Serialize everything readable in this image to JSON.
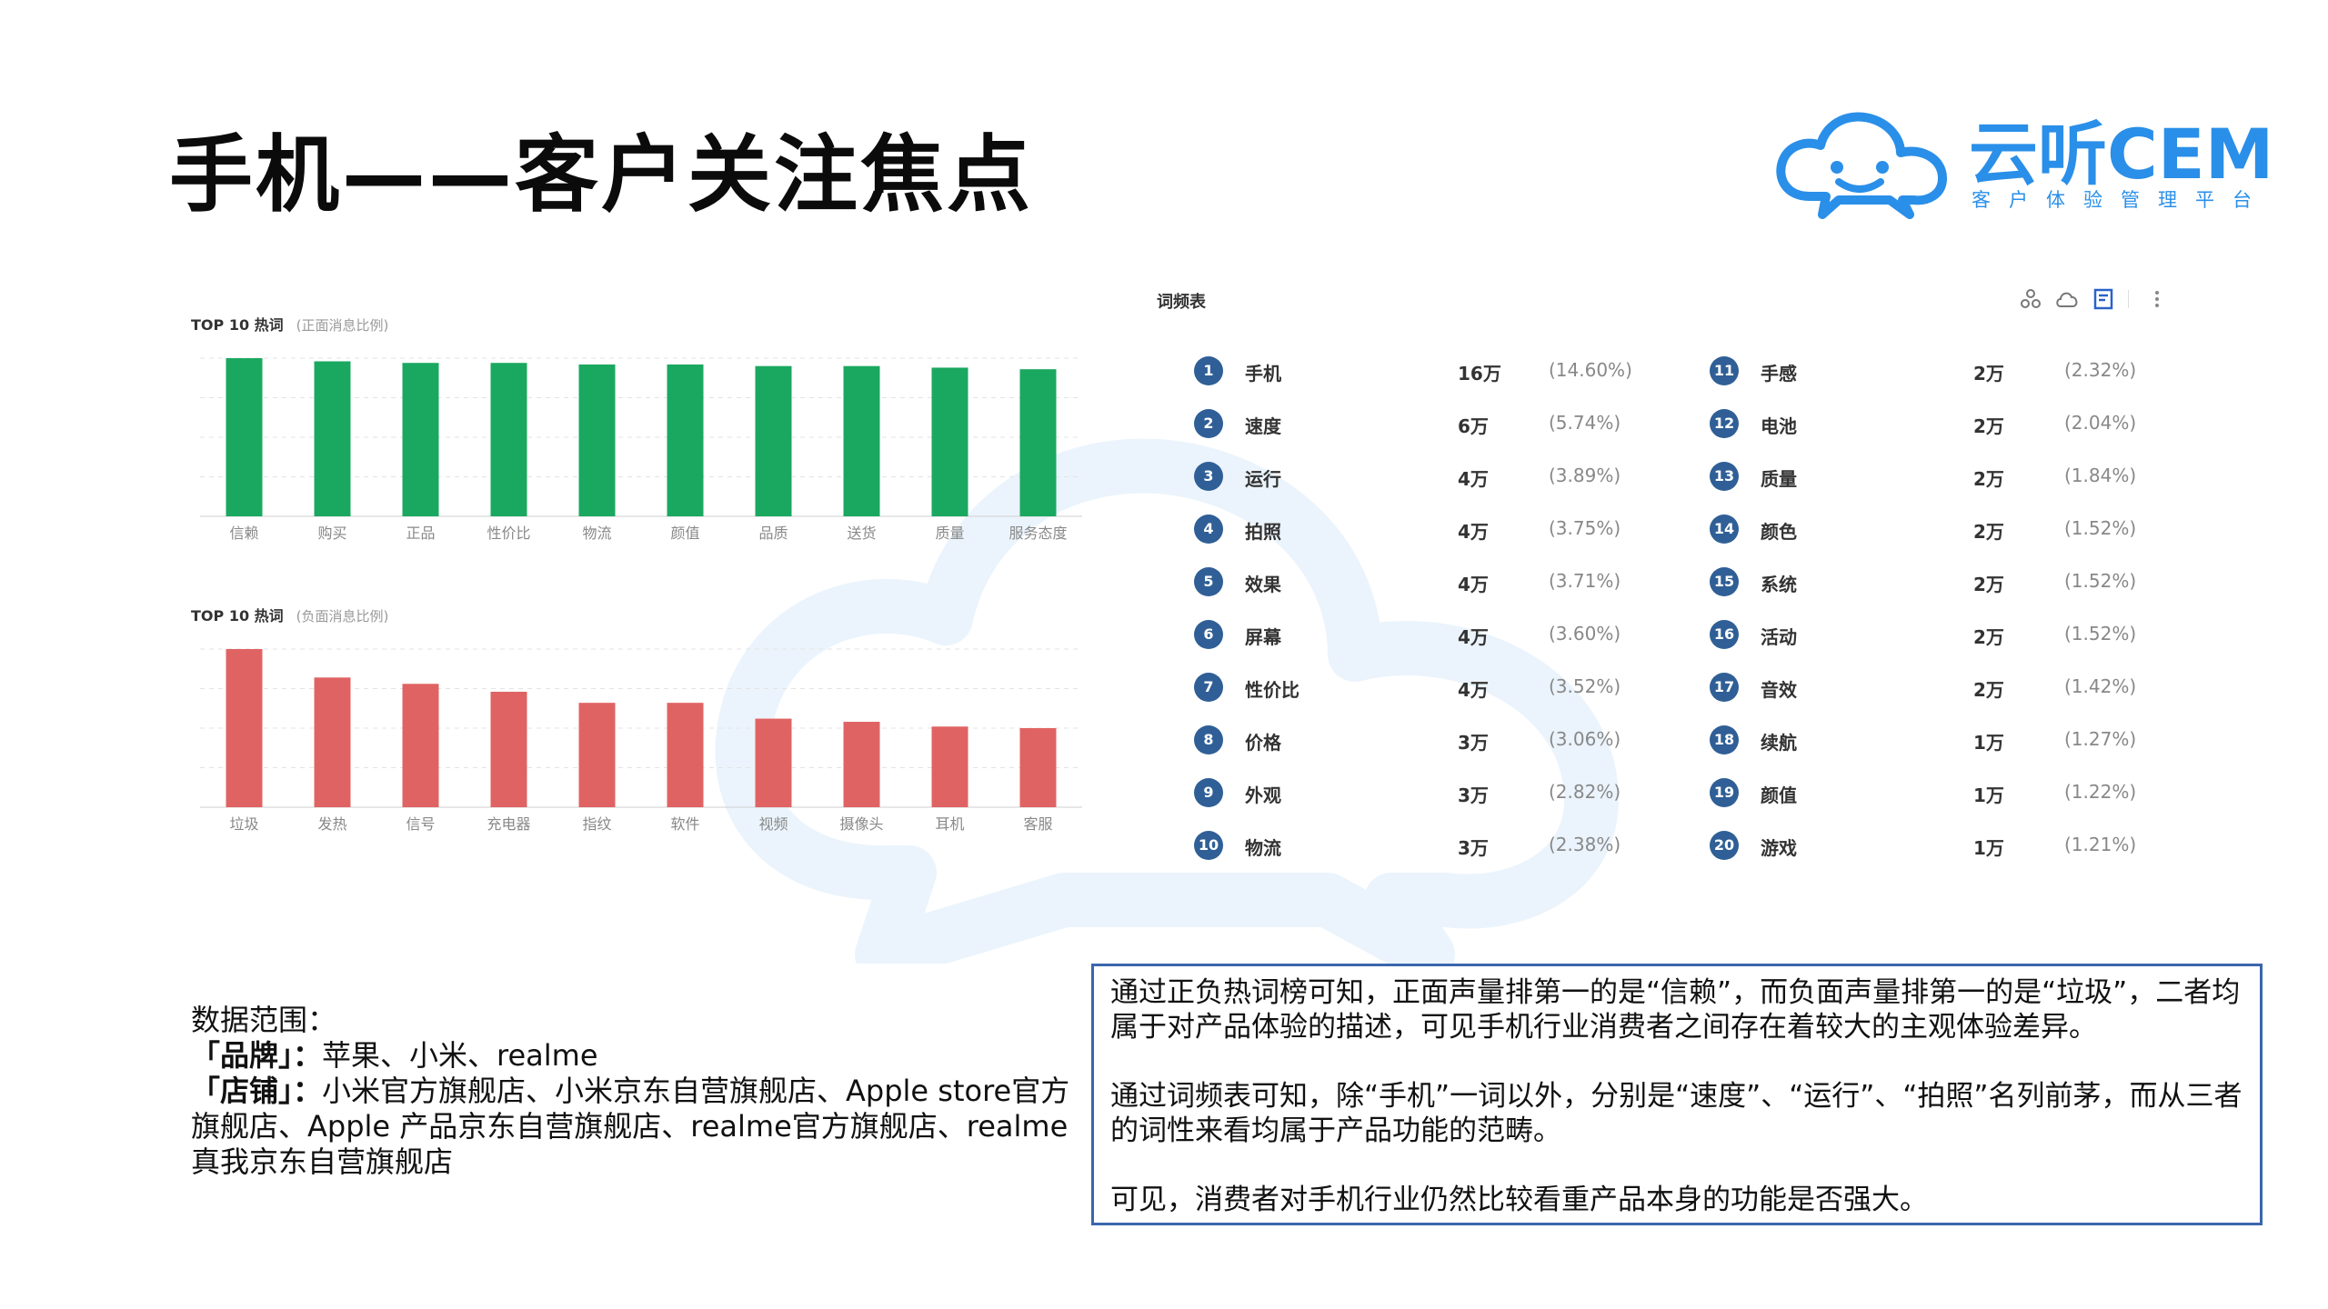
{
  "slide": {
    "title": "手机——客户关注焦点"
  },
  "logo": {
    "name": "云听CEM",
    "subtitle": "客户体验管理平台",
    "color": "#2a8fe8"
  },
  "chart_data": [
    {
      "type": "bar",
      "title": "TOP 10 热词",
      "subtitle": "(正面消息比例)",
      "color": "#1aa860",
      "categories": [
        "信赖",
        "购买",
        "正品",
        "性价比",
        "物流",
        "颜值",
        "品质",
        "送货",
        "质量",
        "服务态度"
      ],
      "values": [
        100,
        98,
        97,
        97,
        96,
        96,
        95,
        95,
        94,
        93
      ],
      "ylim": [
        0,
        100
      ],
      "grid": true
    },
    {
      "type": "bar",
      "title": "TOP 10 热词",
      "subtitle": "(负面消息比例)",
      "color": "#e06363",
      "categories": [
        "垃圾",
        "发热",
        "信号",
        "充电器",
        "指纹",
        "软件",
        "视频",
        "摄像头",
        "耳机",
        "客服"
      ],
      "values": [
        100,
        82,
        78,
        73,
        66,
        66,
        56,
        54,
        51,
        50
      ],
      "ylim": [
        0,
        100
      ],
      "grid": true
    },
    {
      "type": "table",
      "title": "词频表",
      "columns": [
        "rank",
        "word",
        "count",
        "percent"
      ],
      "rows": [
        {
          "rank": "1",
          "word": "手机",
          "count": "16万",
          "pct": "(14.60%)"
        },
        {
          "rank": "2",
          "word": "速度",
          "count": "6万",
          "pct": "(5.74%)"
        },
        {
          "rank": "3",
          "word": "运行",
          "count": "4万",
          "pct": "(3.89%)"
        },
        {
          "rank": "4",
          "word": "拍照",
          "count": "4万",
          "pct": "(3.75%)"
        },
        {
          "rank": "5",
          "word": "效果",
          "count": "4万",
          "pct": "(3.71%)"
        },
        {
          "rank": "6",
          "word": "屏幕",
          "count": "4万",
          "pct": "(3.60%)"
        },
        {
          "rank": "7",
          "word": "性价比",
          "count": "4万",
          "pct": "(3.52%)"
        },
        {
          "rank": "8",
          "word": "价格",
          "count": "3万",
          "pct": "(3.06%)"
        },
        {
          "rank": "9",
          "word": "外观",
          "count": "3万",
          "pct": "(2.82%)"
        },
        {
          "rank": "10",
          "word": "物流",
          "count": "3万",
          "pct": "(2.38%)"
        },
        {
          "rank": "11",
          "word": "手感",
          "count": "2万",
          "pct": "(2.32%)"
        },
        {
          "rank": "12",
          "word": "电池",
          "count": "2万",
          "pct": "(2.04%)"
        },
        {
          "rank": "13",
          "word": "质量",
          "count": "2万",
          "pct": "(1.84%)"
        },
        {
          "rank": "14",
          "word": "颜色",
          "count": "2万",
          "pct": "(1.52%)"
        },
        {
          "rank": "15",
          "word": "系统",
          "count": "2万",
          "pct": "(1.52%)"
        },
        {
          "rank": "16",
          "word": "活动",
          "count": "2万",
          "pct": "(1.52%)"
        },
        {
          "rank": "17",
          "word": "音效",
          "count": "2万",
          "pct": "(1.42%)"
        },
        {
          "rank": "18",
          "word": "续航",
          "count": "1万",
          "pct": "(1.27%)"
        },
        {
          "rank": "19",
          "word": "颜值",
          "count": "1万",
          "pct": "(1.22%)"
        },
        {
          "rank": "20",
          "word": "游戏",
          "count": "1万",
          "pct": "(1.21%)"
        }
      ]
    }
  ],
  "word_table": {
    "tools": [
      "share-icon",
      "cloud-icon",
      "document-icon",
      "more-icon"
    ]
  },
  "scope": {
    "heading": "数据范围：",
    "brand_label": "「品牌」：",
    "brand_value": "苹果、小米、realme",
    "store_label": "「店铺」：",
    "store_value": "小米官方旗舰店、小米京东自营旗舰店、Apple store官方旗舰店、Apple 产品京东自营旗舰店、realme官方旗舰店、realme真我京东自营旗舰店"
  },
  "summary": {
    "p1": "通过正负热词榜可知，正面声量排第一的是“信赖”，而负面声量排第一的是“垃圾”，二者均属于对产品体验的描述，可见手机行业消费者之间存在着较大的主观体验差异。",
    "p2": "通过词频表可知，除“手机”一词以外，分别是“速度”、“运行”、“拍照”名列前茅，而从三者的词性来看均属于产品功能的范畴。",
    "p3": "可见，消费者对手机行业仍然比较看重产品本身的功能是否强大。",
    "border_color": "#3b66ad"
  }
}
